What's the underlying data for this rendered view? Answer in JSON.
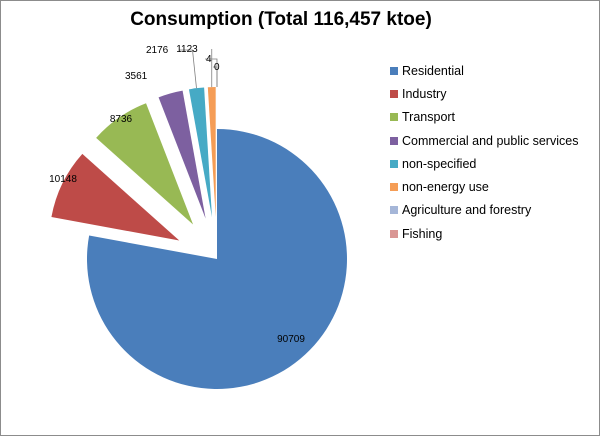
{
  "chart_data": {
    "type": "pie",
    "title": "Consumption (Total 116,457 ktoe)",
    "categories": [
      "Residential",
      "Industry",
      "Transport",
      "Commercial and public services",
      "non-specified",
      "non-energy use",
      "Agriculture and forestry",
      "Fishing"
    ],
    "values": [
      90709,
      10148,
      8736,
      3561,
      2176,
      1123,
      4,
      0
    ],
    "colors": [
      "#4a7ebb",
      "#be4b48",
      "#98b954",
      "#7d60a0",
      "#46aac5",
      "#f59d56",
      "#a5b6d8",
      "#d99694"
    ],
    "exploded": [
      false,
      true,
      true,
      true,
      true,
      true,
      true,
      true
    ],
    "legend_position": "right"
  }
}
